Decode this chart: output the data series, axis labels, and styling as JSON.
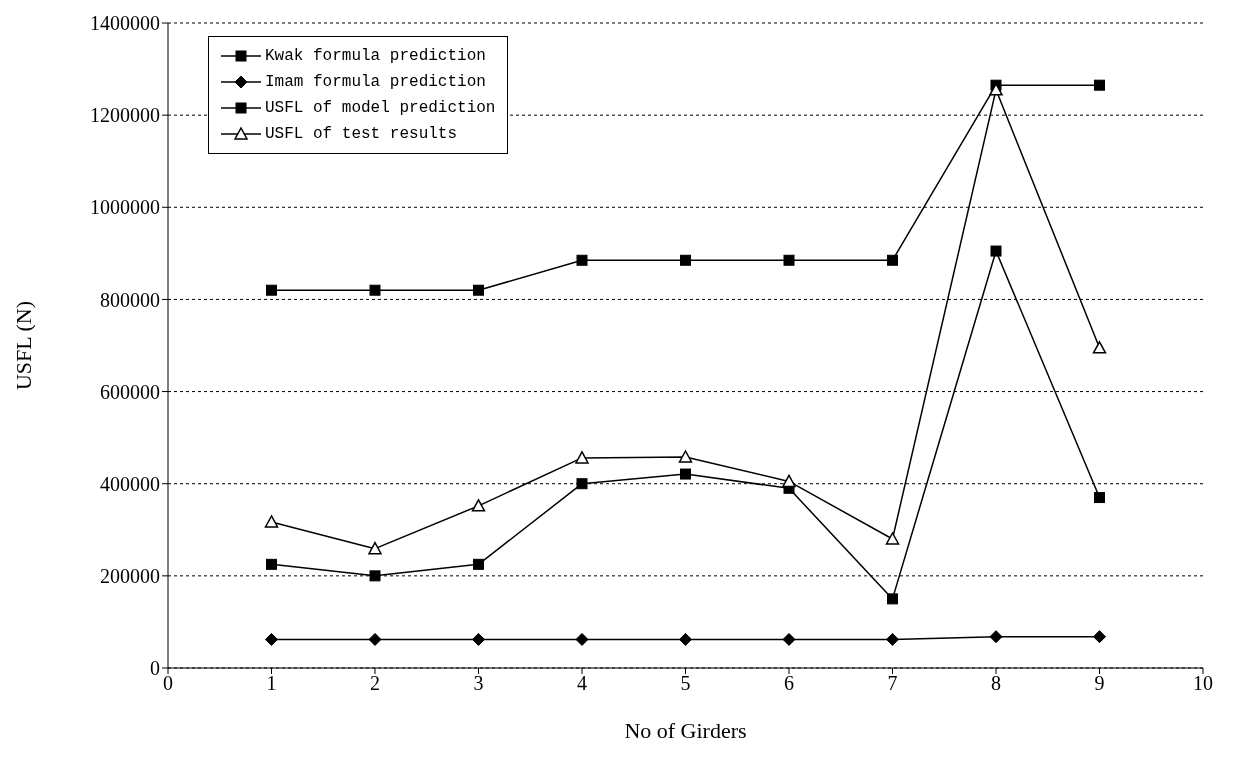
{
  "chart_data": {
    "type": "line",
    "xlabel": "No of Girders",
    "ylabel": "USFL (N)",
    "x": [
      1,
      2,
      3,
      4,
      5,
      6,
      7,
      8,
      9
    ],
    "series": [
      {
        "name": "Kwak formula prediction",
        "color": "#000000",
        "marker": "square",
        "values": [
          820000,
          820000,
          820000,
          885000,
          885000,
          885000,
          885000,
          1265000,
          1265000
        ]
      },
      {
        "name": "Imam formula prediction",
        "color": "#000000",
        "marker": "diamond",
        "values": [
          62000,
          62000,
          62000,
          62000,
          62000,
          62000,
          62000,
          68000,
          68000
        ]
      },
      {
        "name": "USFL of model prediction",
        "color": "#000000",
        "marker": "square",
        "values": [
          225000,
          200000,
          225000,
          400000,
          421000,
          390000,
          150000,
          905000,
          370000
        ]
      },
      {
        "name": "USFL of test results",
        "color": "#000000",
        "marker": "triangle",
        "values": [
          317000,
          259000,
          352000,
          456000,
          458000,
          405000,
          280000,
          1255000,
          695000
        ]
      }
    ],
    "xlim": [
      0,
      10
    ],
    "xticks": [
      0,
      1,
      2,
      3,
      4,
      5,
      6,
      7,
      8,
      9,
      10
    ],
    "ylim": [
      0,
      1400000
    ],
    "yticks": [
      0,
      200000,
      400000,
      600000,
      800000,
      1000000,
      1200000,
      1400000
    ],
    "grid": "y",
    "legend": "top left"
  }
}
